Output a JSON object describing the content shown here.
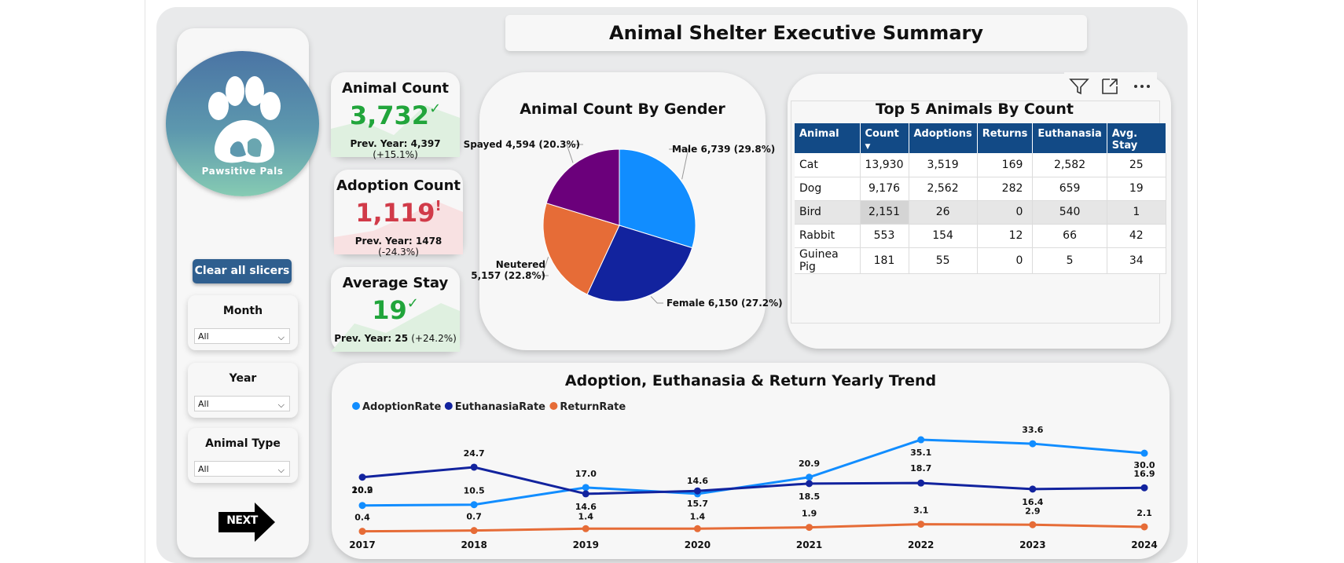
{
  "header": {
    "title": "Animal Shelter Executive Summary"
  },
  "logo": {
    "name": "Pawsitive Pals"
  },
  "controls": {
    "clear_label": "Clear all slicers",
    "next_label": "NEXT",
    "slicers": [
      {
        "label": "Month",
        "value": "All"
      },
      {
        "label": "Year",
        "value": "All"
      },
      {
        "label": "Animal Type",
        "value": "All"
      }
    ]
  },
  "kpis": [
    {
      "title": "Animal Count",
      "value": "3,732",
      "indicator": "✓",
      "prev_label": "Prev. Year: 4,397",
      "change": "(+15.1%)",
      "color": "#21a53b"
    },
    {
      "title": "Adoption Count",
      "value": "1,119",
      "indicator": "!",
      "prev_label": "Prev. Year: 1478",
      "change": "(-24.3%)",
      "color": "#d13b49"
    },
    {
      "title": "Average Stay",
      "value": "19",
      "indicator": "✓",
      "prev_label": "Prev. Year: 25",
      "change": "(+24.2%)",
      "color": "#21a53b"
    }
  ],
  "pie": {
    "title": "Animal Count By Gender",
    "slices": [
      {
        "label": "Male 6,739 (29.8%)",
        "value": 6739,
        "color": "#118dff"
      },
      {
        "label": "Female 6,150 (27.2%)",
        "value": 6150,
        "color": "#12239e"
      },
      {
        "label": "Neutered",
        "label2": "5,157 (22.8%)",
        "value": 5157,
        "color": "#e66c37"
      },
      {
        "label": "Spayed 4,594 (20.3%)",
        "value": 4594,
        "color": "#6b007b"
      }
    ]
  },
  "top5": {
    "title": "Top 5 Animals By Count",
    "columns": [
      "Animal",
      "Count",
      "Adoptions",
      "Returns",
      "Euthanasia",
      "Avg. Stay"
    ],
    "rows": [
      [
        "Cat",
        "13,930",
        "3,519",
        "169",
        "2,582",
        "25"
      ],
      [
        "Dog",
        "9,176",
        "2,562",
        "282",
        "659",
        "19"
      ],
      [
        "Bird",
        "2,151",
        "26",
        "0",
        "540",
        "1"
      ],
      [
        "Rabbit",
        "553",
        "154",
        "12",
        "66",
        "42"
      ],
      [
        "Guinea Pig",
        "181",
        "55",
        "0",
        "5",
        "34"
      ]
    ]
  },
  "chart_data": {
    "type": "line",
    "title": "Adoption, Euthanasia & Return Yearly Trend",
    "x": [
      "2017",
      "2018",
      "2019",
      "2020",
      "2021",
      "2022",
      "2023",
      "2024"
    ],
    "legend_position": "top-left",
    "series": [
      {
        "name": "AdoptionRate",
        "color": "#118dff",
        "values": [
          10.2,
          10.5,
          17.0,
          14.6,
          20.9,
          35.1,
          33.6,
          30.0
        ]
      },
      {
        "name": "EuthanasiaRate",
        "color": "#12239e",
        "values": [
          20.9,
          24.7,
          14.6,
          15.7,
          18.5,
          18.7,
          16.4,
          16.9
        ]
      },
      {
        "name": "ReturnRate",
        "color": "#e66c37",
        "values": [
          0.4,
          0.7,
          1.4,
          1.4,
          1.9,
          3.1,
          2.9,
          2.1
        ]
      }
    ],
    "labels": {
      "AdoptionRate": [
        "10.2",
        "10.5",
        "17.0",
        "14.6",
        "20.9",
        "35.1",
        "33.6",
        "30.0"
      ],
      "EuthanasiaRate": [
        "20.9",
        "24.7",
        "14.6",
        "15.7",
        "18.5",
        "18.7",
        "16.4",
        "16.9"
      ],
      "ReturnRate": [
        "0.4",
        "0.7",
        "1.4",
        "1.4",
        "1.9",
        "3.1",
        "2.9",
        "2.1"
      ]
    }
  }
}
